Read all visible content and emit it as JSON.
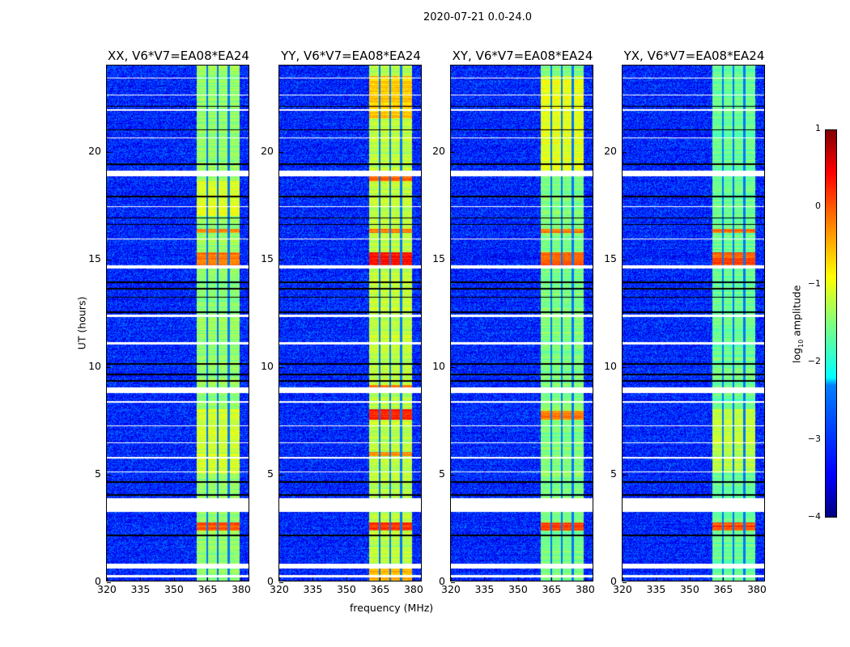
{
  "chart_data": {
    "type": "heatmap",
    "title": "2020-07-21 0.0-24.0",
    "xlabel": "frequency (MHz)",
    "ylabel": "UT (hours)",
    "xlim": [
      320,
      384
    ],
    "ylim": [
      0,
      24
    ],
    "xticks": [
      320,
      335,
      350,
      365,
      380
    ],
    "yticks": [
      0,
      5,
      10,
      15,
      20
    ],
    "colorbar": {
      "label_prefix": "log",
      "label_sub": "10",
      "label_suffix": " amplitude",
      "range": [
        -4,
        1
      ],
      "ticks": [
        "1",
        "0",
        "−1",
        "−2",
        "−3",
        "−4"
      ],
      "tick_values": [
        1,
        0,
        -1,
        -2,
        -3,
        -4
      ],
      "colormap": "jet"
    },
    "background_level": -3.2,
    "rfi_band_mhz": [
      360.5,
      380
    ],
    "subband_edges_mhz": [
      365.3,
      370.1,
      375.0
    ],
    "flagged_hours": [
      [
        0.15,
        0.25
      ],
      [
        0.55,
        0.8
      ],
      [
        3.2,
        3.85
      ],
      [
        5.05,
        5.1
      ],
      [
        5.7,
        5.75
      ],
      [
        6.4,
        6.45
      ],
      [
        7.2,
        7.25
      ],
      [
        8.3,
        8.35
      ],
      [
        8.75,
        9.0
      ],
      [
        11.0,
        11.1
      ],
      [
        12.3,
        12.4
      ],
      [
        14.55,
        14.7
      ],
      [
        15.9,
        15.95
      ],
      [
        17.4,
        17.45
      ],
      [
        18.85,
        19.1
      ],
      [
        20.6,
        20.65
      ],
      [
        21.9,
        21.95
      ],
      [
        22.6,
        22.65
      ],
      [
        23.4,
        23.45
      ]
    ],
    "dark_hours": [
      2.1,
      4.0,
      4.6,
      9.3,
      9.6,
      10.1,
      12.5,
      13.2,
      13.6,
      13.9,
      16.6,
      16.9,
      17.9,
      19.4,
      21.0,
      22.1
    ],
    "panels": [
      {
        "title": "XX, V6*V7=EA08*EA24",
        "band_level": -1.4,
        "bright_segments": [
          [
            2.35,
            2.7,
            -0.1
          ],
          [
            14.7,
            15.3,
            -0.2
          ],
          [
            16.2,
            16.4,
            -0.3
          ],
          [
            5,
            8,
            -1.1
          ],
          [
            17,
            18.6,
            -1.0
          ]
        ]
      },
      {
        "title": "YY, V6*V7=EA08*EA24",
        "band_level": -1.2,
        "bright_segments": [
          [
            0,
            0.8,
            -0.5
          ],
          [
            2.35,
            2.7,
            0.1
          ],
          [
            5.8,
            6.0,
            -0.3
          ],
          [
            7.5,
            8.0,
            0.2
          ],
          [
            8.9,
            9.1,
            -0.3
          ],
          [
            14.7,
            15.3,
            0.3
          ],
          [
            16.2,
            16.4,
            -0.2
          ],
          [
            18.6,
            18.9,
            -0.1
          ],
          [
            21.5,
            23.5,
            -0.6
          ]
        ]
      },
      {
        "title": "XY, V6*V7=EA08*EA24",
        "band_level": -1.5,
        "bright_segments": [
          [
            2.35,
            2.7,
            0.0
          ],
          [
            7.5,
            7.9,
            -0.3
          ],
          [
            14.7,
            15.3,
            0.0
          ],
          [
            16.2,
            16.4,
            -0.2
          ],
          [
            19,
            23.5,
            -1.0
          ]
        ]
      },
      {
        "title": "YX, V6*V7=EA08*EA24",
        "band_level": -1.6,
        "bright_segments": [
          [
            2.35,
            2.7,
            0.0
          ],
          [
            7.5,
            7.9,
            -0.3
          ],
          [
            14.7,
            15.3,
            0.0
          ],
          [
            16.2,
            16.4,
            -0.2
          ],
          [
            5,
            8,
            -1.2
          ]
        ]
      }
    ]
  }
}
